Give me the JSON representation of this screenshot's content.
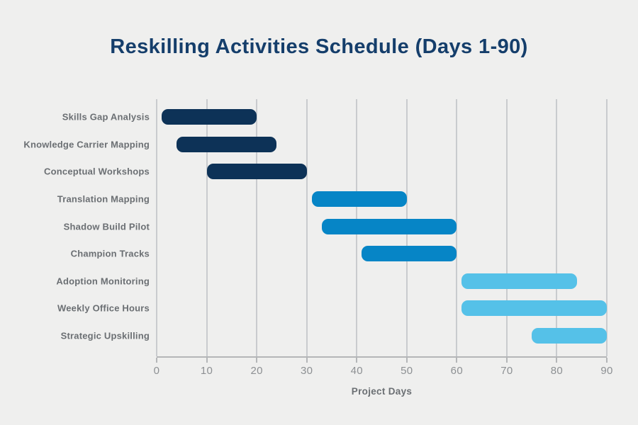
{
  "chart_data": {
    "type": "bar",
    "variant": "horizontal-gantt",
    "title": "Reskilling Activities Schedule (Days 1-90)",
    "xlabel": "Project Days",
    "xlim": [
      0,
      90
    ],
    "xticks": [
      0,
      10,
      20,
      30,
      40,
      50,
      60,
      70,
      80,
      90
    ],
    "grid": true,
    "legend": "none",
    "categories": [
      "Skills Gap Analysis",
      "Knowledge Carrier Mapping",
      "Conceptual Workshops",
      "Translation Mapping",
      "Shadow Build Pilot",
      "Champion Tracks",
      "Adoption Monitoring",
      "Weekly Office Hours",
      "Strategic Upskilling"
    ],
    "tasks": [
      {
        "label": "Skills Gap Analysis",
        "start": 1,
        "end": 20,
        "color": "#0d3257"
      },
      {
        "label": "Knowledge Carrier Mapping",
        "start": 4,
        "end": 24,
        "color": "#0d3257"
      },
      {
        "label": "Conceptual Workshops",
        "start": 10,
        "end": 30,
        "color": "#0d3257"
      },
      {
        "label": "Translation Mapping",
        "start": 31,
        "end": 50,
        "color": "#0685c6"
      },
      {
        "label": "Shadow Build Pilot",
        "start": 33,
        "end": 60,
        "color": "#0685c6"
      },
      {
        "label": "Champion Tracks",
        "start": 41,
        "end": 60,
        "color": "#0685c6"
      },
      {
        "label": "Adoption Monitoring",
        "start": 61,
        "end": 84,
        "color": "#55c1e8"
      },
      {
        "label": "Weekly Office Hours",
        "start": 61,
        "end": 90,
        "color": "#55c1e8"
      },
      {
        "label": "Strategic Upskilling",
        "start": 75,
        "end": 90,
        "color": "#55c1e8"
      }
    ]
  },
  "colors": {
    "background": "#efefee",
    "gridline": "#c9cbce",
    "axis": "#b4b6b8",
    "tick_text": "#8d9093",
    "task_label_text": "#6b6f73",
    "title_text": "#153e6b",
    "bar_navy": "#0d3257",
    "bar_azure": "#0685c6",
    "bar_light_blue": "#55c1e8"
  }
}
